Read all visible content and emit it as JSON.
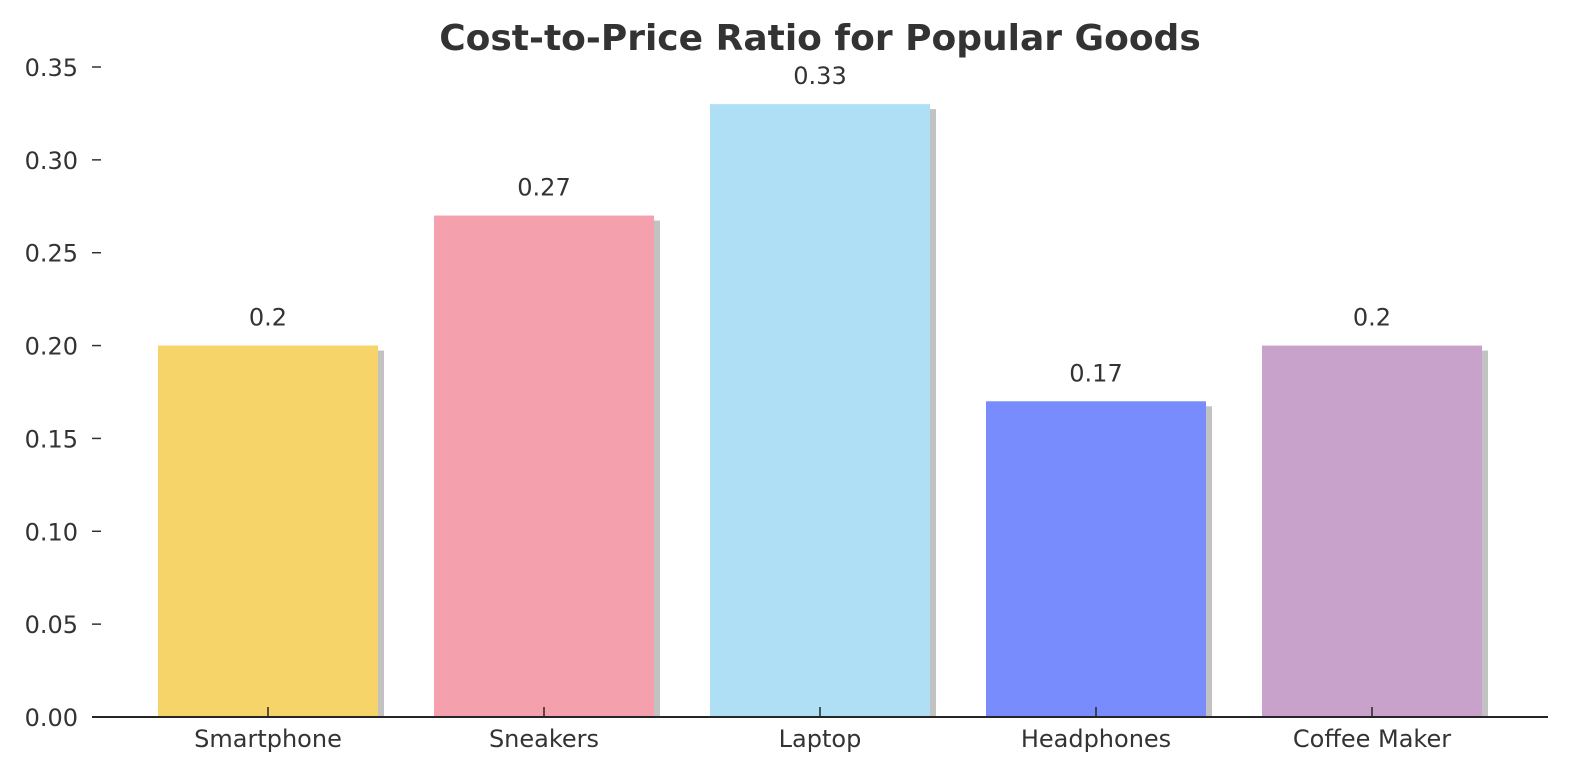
{
  "chart_data": {
    "type": "bar",
    "title": "Cost-to-Price Ratio for Popular Goods",
    "xlabel": "",
    "ylabel": "",
    "categories": [
      "Smartphone",
      "Sneakers",
      "Laptop",
      "Headphones",
      "Coffee Maker"
    ],
    "values": [
      0.2,
      0.27,
      0.33,
      0.17,
      0.2
    ],
    "data_labels": [
      "0.2",
      "0.27",
      "0.33",
      "0.17",
      "0.2"
    ],
    "bar_colors": [
      "#F6D46A",
      "#F4A0AD",
      "#AEDFF5",
      "#788CFE",
      "#C8A2CA"
    ],
    "shadow_color": "#C2C2C2",
    "ylim": [
      0,
      0.35
    ],
    "yticks": [
      0,
      0.05,
      0.1,
      0.15,
      0.2,
      0.25,
      0.3,
      0.35
    ],
    "ytick_labels": [
      "0.00",
      "0.05",
      "0.10",
      "0.15",
      "0.20",
      "0.25",
      "0.30",
      "0.35"
    ],
    "grid": false,
    "legend": "none"
  }
}
